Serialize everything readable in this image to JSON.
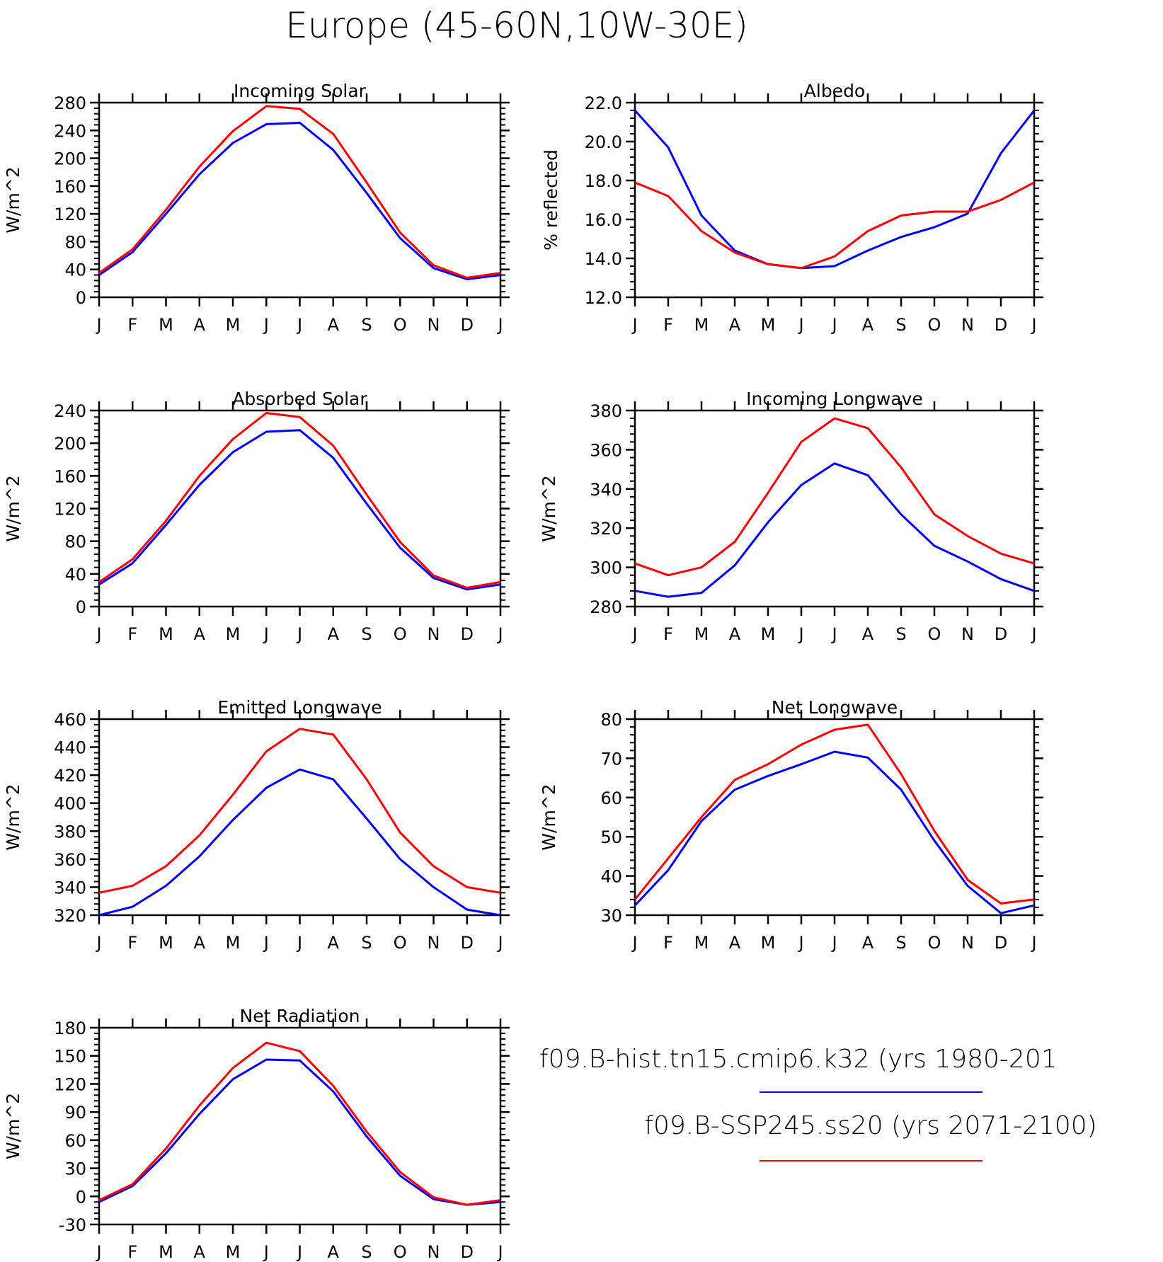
{
  "page": {
    "title": "Europe (45-60N,10W-30E)"
  },
  "legend": {
    "entries": [
      {
        "label": "f09.B-hist.tn15.cmip6.k32 (yrs 1980-201",
        "color": "#0000ff"
      },
      {
        "label": "f09.B-SSP245.ss20 (yrs 2071-2100)",
        "color": "#ff0000"
      }
    ]
  },
  "chart_data": [
    {
      "type": "line",
      "title": "Incoming Solar",
      "ylabel": "W/m^2",
      "categories": [
        "J",
        "F",
        "M",
        "A",
        "M",
        "J",
        "J",
        "A",
        "S",
        "O",
        "N",
        "D",
        "J"
      ],
      "ylim": [
        0,
        280
      ],
      "yticks": [
        "0",
        "40",
        "80",
        "120",
        "160",
        "200",
        "240",
        "280"
      ],
      "series": [
        {
          "color": "#0000ff",
          "values": [
            32,
            65,
            120,
            177,
            222,
            249,
            251,
            212,
            150,
            85,
            42,
            26,
            32
          ]
        },
        {
          "color": "#ff0000",
          "values": [
            35,
            69,
            126,
            188,
            239,
            275,
            271,
            235,
            165,
            93,
            46,
            28,
            35
          ]
        }
      ]
    },
    {
      "type": "line",
      "title": "Albedo",
      "ylabel": "% reflected",
      "categories": [
        "J",
        "F",
        "M",
        "A",
        "M",
        "J",
        "J",
        "A",
        "S",
        "O",
        "N",
        "D",
        "J"
      ],
      "ylim": [
        12,
        22
      ],
      "yticks": [
        "12.0",
        "14.0",
        "16.0",
        "18.0",
        "20.0",
        "22.0"
      ],
      "series": [
        {
          "color": "#0000ff",
          "values": [
            21.6,
            19.7,
            16.2,
            14.4,
            13.7,
            13.5,
            13.6,
            14.4,
            15.1,
            15.6,
            16.3,
            19.4,
            21.6
          ]
        },
        {
          "color": "#ff0000",
          "values": [
            17.9,
            17.2,
            15.4,
            14.3,
            13.7,
            13.5,
            14.1,
            15.4,
            16.2,
            16.4,
            16.4,
            17.0,
            17.9
          ]
        }
      ]
    },
    {
      "type": "line",
      "title": "Absorbed Solar",
      "ylabel": "W/m^2",
      "categories": [
        "J",
        "F",
        "M",
        "A",
        "M",
        "J",
        "J",
        "A",
        "S",
        "O",
        "N",
        "D",
        "J"
      ],
      "ylim": [
        0,
        240
      ],
      "yticks": [
        "0",
        "40",
        "80",
        "120",
        "160",
        "200",
        "240"
      ],
      "series": [
        {
          "color": "#0000ff",
          "values": [
            27,
            53,
            100,
            149,
            189,
            214,
            216,
            182,
            126,
            72,
            35,
            21,
            27
          ]
        },
        {
          "color": "#ff0000",
          "values": [
            30,
            58,
            105,
            160,
            205,
            237,
            232,
            197,
            137,
            79,
            38,
            23,
            30
          ]
        }
      ]
    },
    {
      "type": "line",
      "title": "Incoming Longwave",
      "ylabel": "W/m^2",
      "categories": [
        "J",
        "F",
        "M",
        "A",
        "M",
        "J",
        "J",
        "A",
        "S",
        "O",
        "N",
        "D",
        "J"
      ],
      "ylim": [
        280,
        380
      ],
      "yticks": [
        "280",
        "300",
        "320",
        "340",
        "360",
        "380"
      ],
      "series": [
        {
          "color": "#0000ff",
          "values": [
            288,
            285,
            287,
            301,
            323,
            342,
            353,
            347,
            327,
            311,
            303,
            294,
            288
          ]
        },
        {
          "color": "#ff0000",
          "values": [
            302,
            296,
            300,
            313,
            338,
            364,
            376,
            371,
            351,
            327,
            316,
            307,
            302
          ]
        }
      ]
    },
    {
      "type": "line",
      "title": "Emitted Longwave",
      "ylabel": "W/m^2",
      "categories": [
        "J",
        "F",
        "M",
        "A",
        "M",
        "J",
        "J",
        "A",
        "S",
        "O",
        "N",
        "D",
        "J"
      ],
      "ylim": [
        320,
        460
      ],
      "yticks": [
        "320",
        "340",
        "360",
        "380",
        "400",
        "420",
        "440",
        "460"
      ],
      "series": [
        {
          "color": "#0000ff",
          "values": [
            320,
            326,
            341,
            362,
            388,
            411,
            424,
            417,
            389,
            360,
            340,
            324,
            320
          ]
        },
        {
          "color": "#ff0000",
          "values": [
            336,
            341,
            355,
            377,
            406,
            437,
            453,
            449,
            417,
            379,
            355,
            340,
            336
          ]
        }
      ]
    },
    {
      "type": "line",
      "title": "Net Longwave",
      "ylabel": "W/m^2",
      "categories": [
        "J",
        "F",
        "M",
        "A",
        "M",
        "J",
        "J",
        "A",
        "S",
        "O",
        "N",
        "D",
        "J"
      ],
      "ylim": [
        30,
        80
      ],
      "yticks": [
        "30",
        "40",
        "50",
        "60",
        "70",
        "80"
      ],
      "series": [
        {
          "color": "#0000ff",
          "values": [
            32.5,
            41.5,
            54.0,
            62.0,
            65.5,
            68.5,
            71.7,
            70.2,
            62.0,
            49.0,
            37.5,
            30.5,
            32.5
          ]
        },
        {
          "color": "#ff0000",
          "values": [
            34.0,
            44.5,
            55.0,
            64.5,
            68.5,
            73.5,
            77.3,
            78.6,
            66.0,
            51.5,
            39.0,
            33.0,
            34.0
          ]
        }
      ]
    },
    {
      "type": "line",
      "title": "Net Radiation",
      "ylabel": "W/m^2",
      "categories": [
        "J",
        "F",
        "M",
        "A",
        "M",
        "J",
        "J",
        "A",
        "S",
        "O",
        "N",
        "D",
        "J"
      ],
      "ylim": [
        -30,
        180
      ],
      "yticks": [
        "-30",
        "0",
        "30",
        "60",
        "90",
        "120",
        "150",
        "180"
      ],
      "series": [
        {
          "color": "#0000ff",
          "values": [
            -6,
            11,
            46,
            88,
            125,
            146,
            145,
            112,
            64,
            22,
            -3,
            -9,
            -6
          ]
        },
        {
          "color": "#ff0000",
          "values": [
            -4,
            13,
            51,
            97,
            137,
            164,
            155,
            118,
            69,
            26,
            -1,
            -9,
            -4
          ]
        }
      ]
    }
  ]
}
